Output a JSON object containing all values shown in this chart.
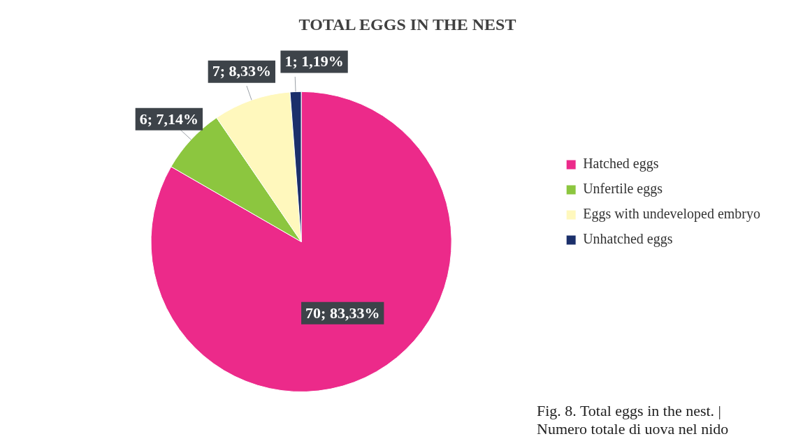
{
  "chart_data": {
    "type": "pie",
    "title": "TOTAL EGGS IN THE NEST",
    "categories": [
      "Hatched eggs",
      "Unfertile eggs",
      "Eggs with undeveloped embryo",
      "Unhatched eggs"
    ],
    "values": [
      70,
      6,
      7,
      1
    ],
    "colors": [
      "#ec2a8a",
      "#8cc63f",
      "#fff8bd",
      "#1b2f6b"
    ],
    "value_labels": [
      "70; 83,33%",
      "6; 7,14%",
      "7; 8,33%",
      "1; 1,19%"
    ],
    "legend": "right",
    "annotations": [
      "Fig. 8. Total eggs in the nest. |",
      "Numero totale di uova nel nido"
    ]
  }
}
